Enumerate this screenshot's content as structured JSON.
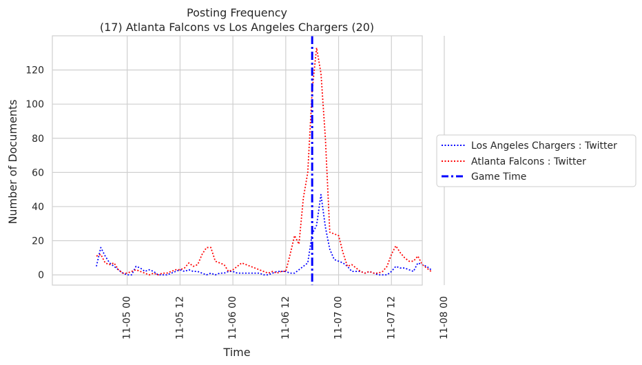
{
  "chart_data": {
    "type": "line",
    "title": "Posting Frequency",
    "subtitle": "(17) Atlanta Falcons vs Los Angeles Chargers (20)",
    "xlabel": "Time",
    "ylabel": "Number of Documents",
    "xlim_hours": [
      -17,
      67
    ],
    "ylim": [
      -6,
      140
    ],
    "x_ticks": [
      {
        "hour": 0,
        "label": "11-05 00"
      },
      {
        "hour": 12,
        "label": "11-05 12"
      },
      {
        "hour": 24,
        "label": "11-06 00"
      },
      {
        "hour": 36,
        "label": "11-06 12"
      },
      {
        "hour": 48,
        "label": "11-07 00"
      },
      {
        "hour": 60,
        "label": "11-07 12"
      },
      {
        "hour": 72,
        "label": "11-08 00"
      }
    ],
    "y_ticks": [
      0,
      20,
      40,
      60,
      80,
      100,
      120
    ],
    "grid": true,
    "legend_position": "right",
    "game_time_hour": 42,
    "series": [
      {
        "name": "Los Angeles Chargers : Twitter",
        "color": "#0000ff",
        "style": "dotted",
        "points": [
          [
            -7,
            5
          ],
          [
            -6,
            16
          ],
          [
            -5,
            11
          ],
          [
            -4,
            7
          ],
          [
            -3,
            5
          ],
          [
            -2,
            3
          ],
          [
            -1,
            1
          ],
          [
            0,
            0
          ],
          [
            1,
            0
          ],
          [
            2,
            5
          ],
          [
            3,
            4
          ],
          [
            4,
            2
          ],
          [
            5,
            3
          ],
          [
            6,
            2
          ],
          [
            7,
            0
          ],
          [
            8,
            0
          ],
          [
            9,
            0
          ],
          [
            10,
            1
          ],
          [
            11,
            2
          ],
          [
            12,
            3
          ],
          [
            13,
            2
          ],
          [
            14,
            3
          ],
          [
            15,
            2
          ],
          [
            16,
            2
          ],
          [
            17,
            1
          ],
          [
            18,
            0
          ],
          [
            19,
            1
          ],
          [
            20,
            0
          ],
          [
            21,
            1
          ],
          [
            22,
            1
          ],
          [
            23,
            2
          ],
          [
            24,
            2
          ],
          [
            25,
            1
          ],
          [
            26,
            1
          ],
          [
            27,
            1
          ],
          [
            28,
            1
          ],
          [
            29,
            1
          ],
          [
            30,
            1
          ],
          [
            31,
            0
          ],
          [
            32,
            0
          ],
          [
            33,
            1
          ],
          [
            34,
            2
          ],
          [
            35,
            2
          ],
          [
            36,
            2
          ],
          [
            37,
            1
          ],
          [
            38,
            1
          ],
          [
            39,
            3
          ],
          [
            40,
            5
          ],
          [
            41,
            7
          ],
          [
            42,
            24
          ],
          [
            43,
            29
          ],
          [
            44,
            47
          ],
          [
            45,
            28
          ],
          [
            46,
            15
          ],
          [
            47,
            9
          ],
          [
            48,
            8
          ],
          [
            49,
            7
          ],
          [
            50,
            5
          ],
          [
            51,
            2
          ],
          [
            52,
            2
          ],
          [
            53,
            2
          ],
          [
            54,
            1
          ],
          [
            55,
            2
          ],
          [
            56,
            1
          ],
          [
            57,
            0
          ],
          [
            58,
            0
          ],
          [
            59,
            0
          ],
          [
            60,
            2
          ],
          [
            61,
            5
          ],
          [
            62,
            4
          ],
          [
            63,
            4
          ],
          [
            64,
            3
          ],
          [
            65,
            2
          ],
          [
            66,
            7
          ],
          [
            67,
            6
          ],
          [
            68,
            5
          ],
          [
            69,
            3
          ]
        ]
      },
      {
        "name": "Atlanta Falcons : Twitter",
        "color": "#ff0000",
        "style": "dotted",
        "points": [
          [
            -7,
            11
          ],
          [
            -6,
            12
          ],
          [
            -5,
            7
          ],
          [
            -4,
            6
          ],
          [
            -3,
            7
          ],
          [
            -2,
            3
          ],
          [
            -1,
            1
          ],
          [
            0,
            1
          ],
          [
            1,
            2
          ],
          [
            2,
            3
          ],
          [
            3,
            2
          ],
          [
            4,
            1
          ],
          [
            5,
            0
          ],
          [
            6,
            1
          ],
          [
            7,
            0
          ],
          [
            8,
            1
          ],
          [
            9,
            1
          ],
          [
            10,
            2
          ],
          [
            11,
            3
          ],
          [
            12,
            3
          ],
          [
            13,
            4
          ],
          [
            14,
            7
          ],
          [
            15,
            5
          ],
          [
            16,
            6
          ],
          [
            17,
            12
          ],
          [
            18,
            16
          ],
          [
            19,
            16
          ],
          [
            20,
            8
          ],
          [
            21,
            7
          ],
          [
            22,
            6
          ],
          [
            23,
            2
          ],
          [
            24,
            3
          ],
          [
            25,
            5
          ],
          [
            26,
            7
          ],
          [
            27,
            6
          ],
          [
            28,
            5
          ],
          [
            29,
            4
          ],
          [
            30,
            3
          ],
          [
            31,
            2
          ],
          [
            32,
            1
          ],
          [
            33,
            2
          ],
          [
            34,
            1
          ],
          [
            35,
            2
          ],
          [
            36,
            2
          ],
          [
            37,
            12
          ],
          [
            38,
            23
          ],
          [
            39,
            18
          ],
          [
            40,
            45
          ],
          [
            41,
            60
          ],
          [
            42,
            108
          ],
          [
            43,
            133
          ],
          [
            44,
            118
          ],
          [
            45,
            80
          ],
          [
            46,
            25
          ],
          [
            47,
            24
          ],
          [
            48,
            23
          ],
          [
            49,
            13
          ],
          [
            50,
            5
          ],
          [
            51,
            6
          ],
          [
            52,
            4
          ],
          [
            53,
            2
          ],
          [
            54,
            1
          ],
          [
            55,
            2
          ],
          [
            56,
            1
          ],
          [
            57,
            1
          ],
          [
            58,
            2
          ],
          [
            59,
            5
          ],
          [
            60,
            12
          ],
          [
            61,
            17
          ],
          [
            62,
            13
          ],
          [
            63,
            10
          ],
          [
            64,
            8
          ],
          [
            65,
            8
          ],
          [
            66,
            11
          ],
          [
            67,
            6
          ],
          [
            68,
            4
          ],
          [
            69,
            2
          ]
        ]
      }
    ],
    "game_time_line": {
      "name": "Game Time",
      "color": "#0000ff",
      "style": "dashdot"
    }
  }
}
